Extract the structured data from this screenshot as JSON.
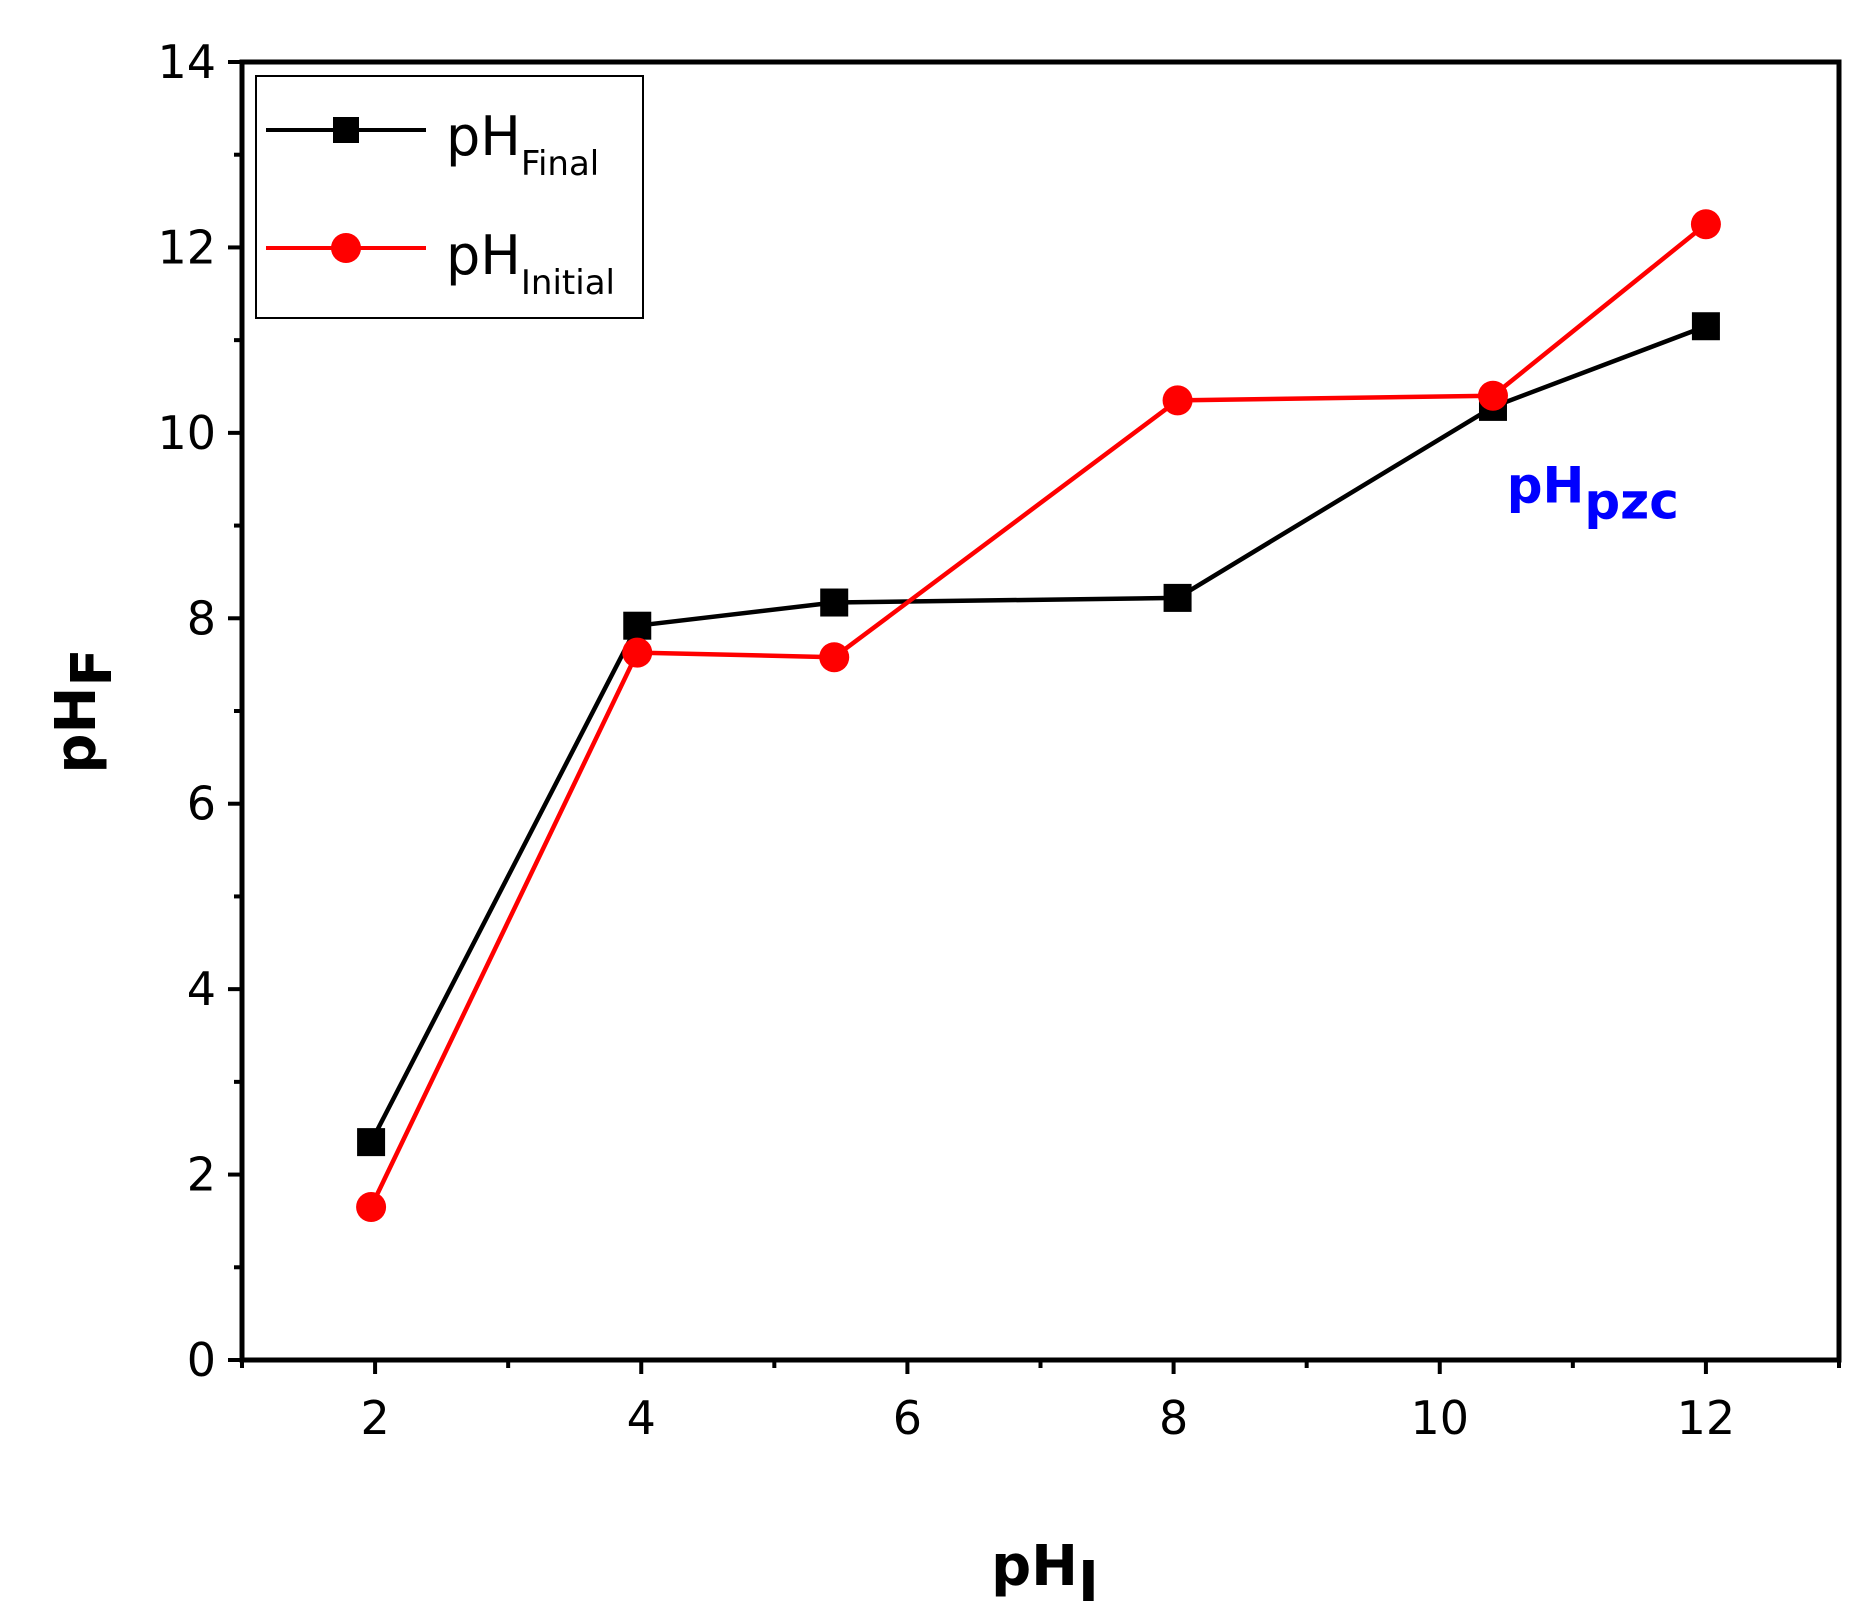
{
  "chart_data": {
    "type": "line",
    "xlabel": {
      "main": "pH",
      "sub": "I"
    },
    "ylabel": {
      "main": "pH",
      "sub": "F"
    },
    "xlim": [
      1,
      13
    ],
    "ylim": [
      0,
      14
    ],
    "x_ticks": [
      2,
      4,
      6,
      8,
      10,
      12
    ],
    "y_ticks": [
      0,
      2,
      4,
      6,
      8,
      10,
      12,
      14
    ],
    "x_tick_labels": [
      "2",
      "4",
      "6",
      "8",
      "10",
      "12"
    ],
    "y_tick_labels": [
      "0",
      "2",
      "4",
      "6",
      "8",
      "10",
      "12",
      "14"
    ],
    "grid": false,
    "legend_position": "top-left",
    "series": [
      {
        "name": "pH",
        "name_sub": "Final",
        "color": "#000000",
        "marker": "square",
        "x": [
          1.97,
          3.97,
          5.45,
          8.03,
          10.4,
          12.0
        ],
        "values": [
          2.35,
          7.92,
          8.17,
          8.22,
          10.28,
          11.15
        ]
      },
      {
        "name": "pH",
        "name_sub": "Initial",
        "color": "#ff0000",
        "marker": "circle",
        "x": [
          1.97,
          3.97,
          5.45,
          8.03,
          10.4,
          12.0
        ],
        "values": [
          1.65,
          7.63,
          7.58,
          10.35,
          10.4,
          12.25
        ]
      }
    ],
    "annotations": [
      {
        "text": "pH",
        "sub": "pzc",
        "x": 11.15,
        "y": 9.25,
        "color": "#0000ff"
      }
    ]
  }
}
